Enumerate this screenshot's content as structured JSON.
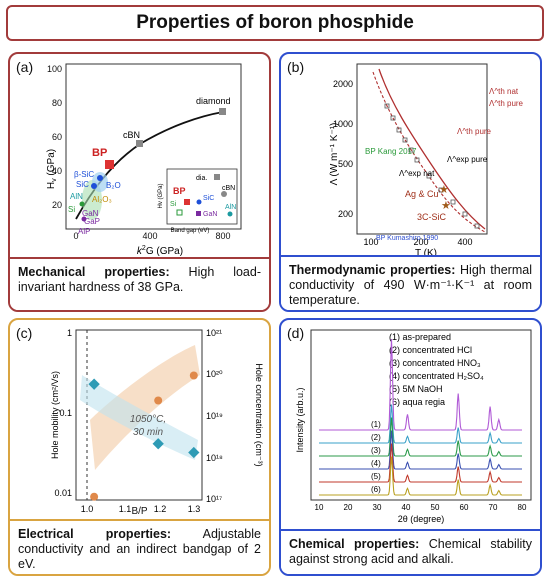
{
  "title": "Properties of boron phosphide",
  "panels": {
    "a": {
      "label": "(a)",
      "caption_head": "Mechanical properties:",
      "caption_body": " High load-invariant hardness of 38 GPa.",
      "ylabel": "H",
      "ylabel_sub": "v",
      "ylabel_unit": " (GPa)",
      "xlabel_pre": "k",
      "xlabel_sup": "2",
      "xlabel_post": "G (GPa)",
      "xticks": [
        "0",
        "400",
        "800"
      ],
      "yticks": [
        "20",
        "40",
        "60",
        "80",
        "100"
      ],
      "point_labels": [
        "diamond",
        "cBN",
        "BP",
        "β-SiC",
        "SiC",
        "B₂O",
        "AlN",
        "Si",
        "Al₂O₃",
        "GaN",
        "GaP",
        "AlP"
      ],
      "inset": {
        "ylabel": "Hv (GPa)",
        "xlabel": "Band gap (eV)",
        "xticks": [
          "0",
          "2",
          "4",
          "6"
        ],
        "yticks": [
          "20",
          "40",
          "60",
          "80",
          "100"
        ],
        "point_labels": [
          "dia.",
          "cBN",
          "BP",
          "Si",
          "SiC",
          "GaN",
          "AlN"
        ]
      }
    },
    "b": {
      "label": "(b)",
      "caption_head": "Thermodynamic properties:",
      "caption_body": " High thermal conductivity of 490 W·m⁻¹·K⁻¹ at room temperature.",
      "ylabel": "Λ (W m⁻¹ K⁻¹)",
      "xlabel": "T (K)",
      "xticks": [
        "100",
        "200",
        "400"
      ],
      "yticks": [
        "200",
        "500",
        "1000",
        "2000"
      ],
      "labels": {
        "nat_th": "Λ^th nat",
        "pure_th": "Λ^th pure",
        "pure_exp": "Λ^exp pure",
        "nat_exp": "Λ^exp nat",
        "kang": "BP Kang 2017",
        "agcu": "Ag & Cu",
        "sic": "3C-SiC",
        "kumashiro": "BP Kumashiro 1990"
      }
    },
    "c": {
      "label": "(c)",
      "caption_head": "Electrical properties:",
      "caption_body": " Adjustable conductivity and an indirect bandgap of 2 eV.",
      "ylabel_left": "Hole mobility (cm²/Vs)",
      "ylabel_right": "Hole concentration (cm⁻³)",
      "xlabel": "B/P",
      "xticks": [
        "1.0",
        "1.1",
        "1.2",
        "1.3"
      ],
      "yticks_left": [
        "0.01",
        "0.1",
        "1"
      ],
      "yticks_right": [
        "10¹⁷",
        "10¹⁸",
        "10¹⁹",
        "10²⁰",
        "10²¹"
      ],
      "annotation_line1": "1050°C,",
      "annotation_line2": "30 min",
      "mobility": {
        "x": [
          1.02,
          1.2,
          1.3
        ],
        "y": [
          0.25,
          0.045,
          0.035
        ]
      },
      "concentration": {
        "x": [
          1.02,
          1.2,
          1.3
        ],
        "y": [
          1.2e+17,
          2.5e+19,
          1e+20
        ]
      }
    },
    "d": {
      "label": "(d)",
      "caption_head": "Chemical properties:",
      "caption_body": " Chemical stability against strong acid and alkali.",
      "ylabel": "Intensity (arb.u.)",
      "xlabel": "2θ (degree)",
      "xticks": [
        "10",
        "20",
        "30",
        "40",
        "50",
        "60",
        "70",
        "80"
      ],
      "legend": [
        "(1) as-prepared",
        "(2) concentrated HCl",
        "(3) concentrated HNO₃",
        "(4) concentrated H₂SO₄",
        "(5) 5M NaOH",
        "(6) aqua regia"
      ],
      "curve_labels": [
        "(1)",
        "(2)",
        "(3)",
        "(4)",
        "(5)",
        "(6)"
      ],
      "colors": [
        "#b05ad6",
        "#3aa0c8",
        "#2b9a4a",
        "#3a4fb0",
        "#c0392b",
        "#b9a020"
      ]
    }
  }
}
